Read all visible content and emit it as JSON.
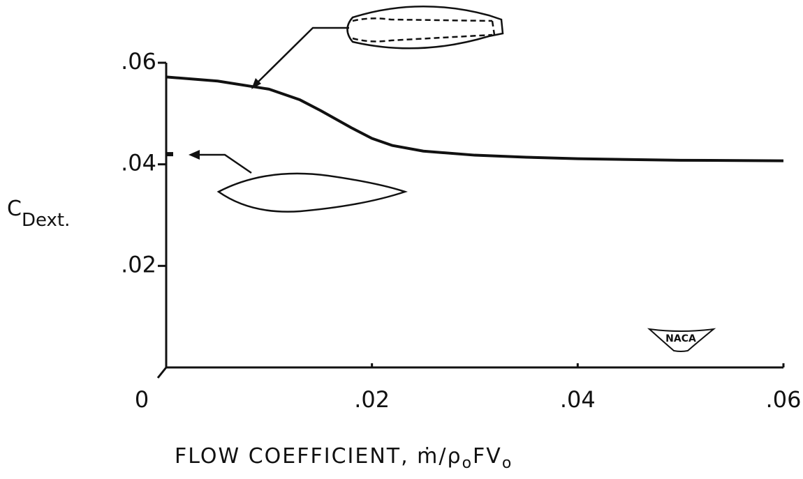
{
  "chart_data": {
    "type": "line",
    "xlabel": [
      "FLOW  COEFFICIENT,  ṁ/ρ",
      "o",
      "FV",
      "o"
    ],
    "ylabel": [
      "C",
      "Dext."
    ],
    "logo": "NACA",
    "xlim": [
      0,
      0.06
    ],
    "ylim": [
      0,
      0.06
    ],
    "xticks": [
      0,
      {
        "value": 0.02,
        "label": ".02"
      },
      {
        "value": 0.04,
        "label": ".04"
      },
      {
        "value": 0.06,
        "label": ".06"
      }
    ],
    "yticks": [
      {
        "value": 0.02,
        "label": ".02"
      },
      {
        "value": 0.04,
        "label": ".04"
      },
      {
        "value": 0.06,
        "label": ".06"
      }
    ],
    "series": [
      {
        "color": "#111111",
        "x": [
          0,
          0.005,
          0.01,
          0.013,
          0.015,
          0.018,
          0.02,
          0.022,
          0.025,
          0.03,
          0.035,
          0.04,
          0.05,
          0.06
        ],
        "values": [
          0.0572,
          0.0564,
          0.0548,
          0.0527,
          0.0506,
          0.0472,
          0.0451,
          0.0437,
          0.0426,
          0.0418,
          0.0414,
          0.0411,
          0.0408,
          0.0407
        ]
      },
      {
        "color": "#111111",
        "x": [
          0
        ],
        "values": [
          0.042
        ]
      }
    ]
  }
}
